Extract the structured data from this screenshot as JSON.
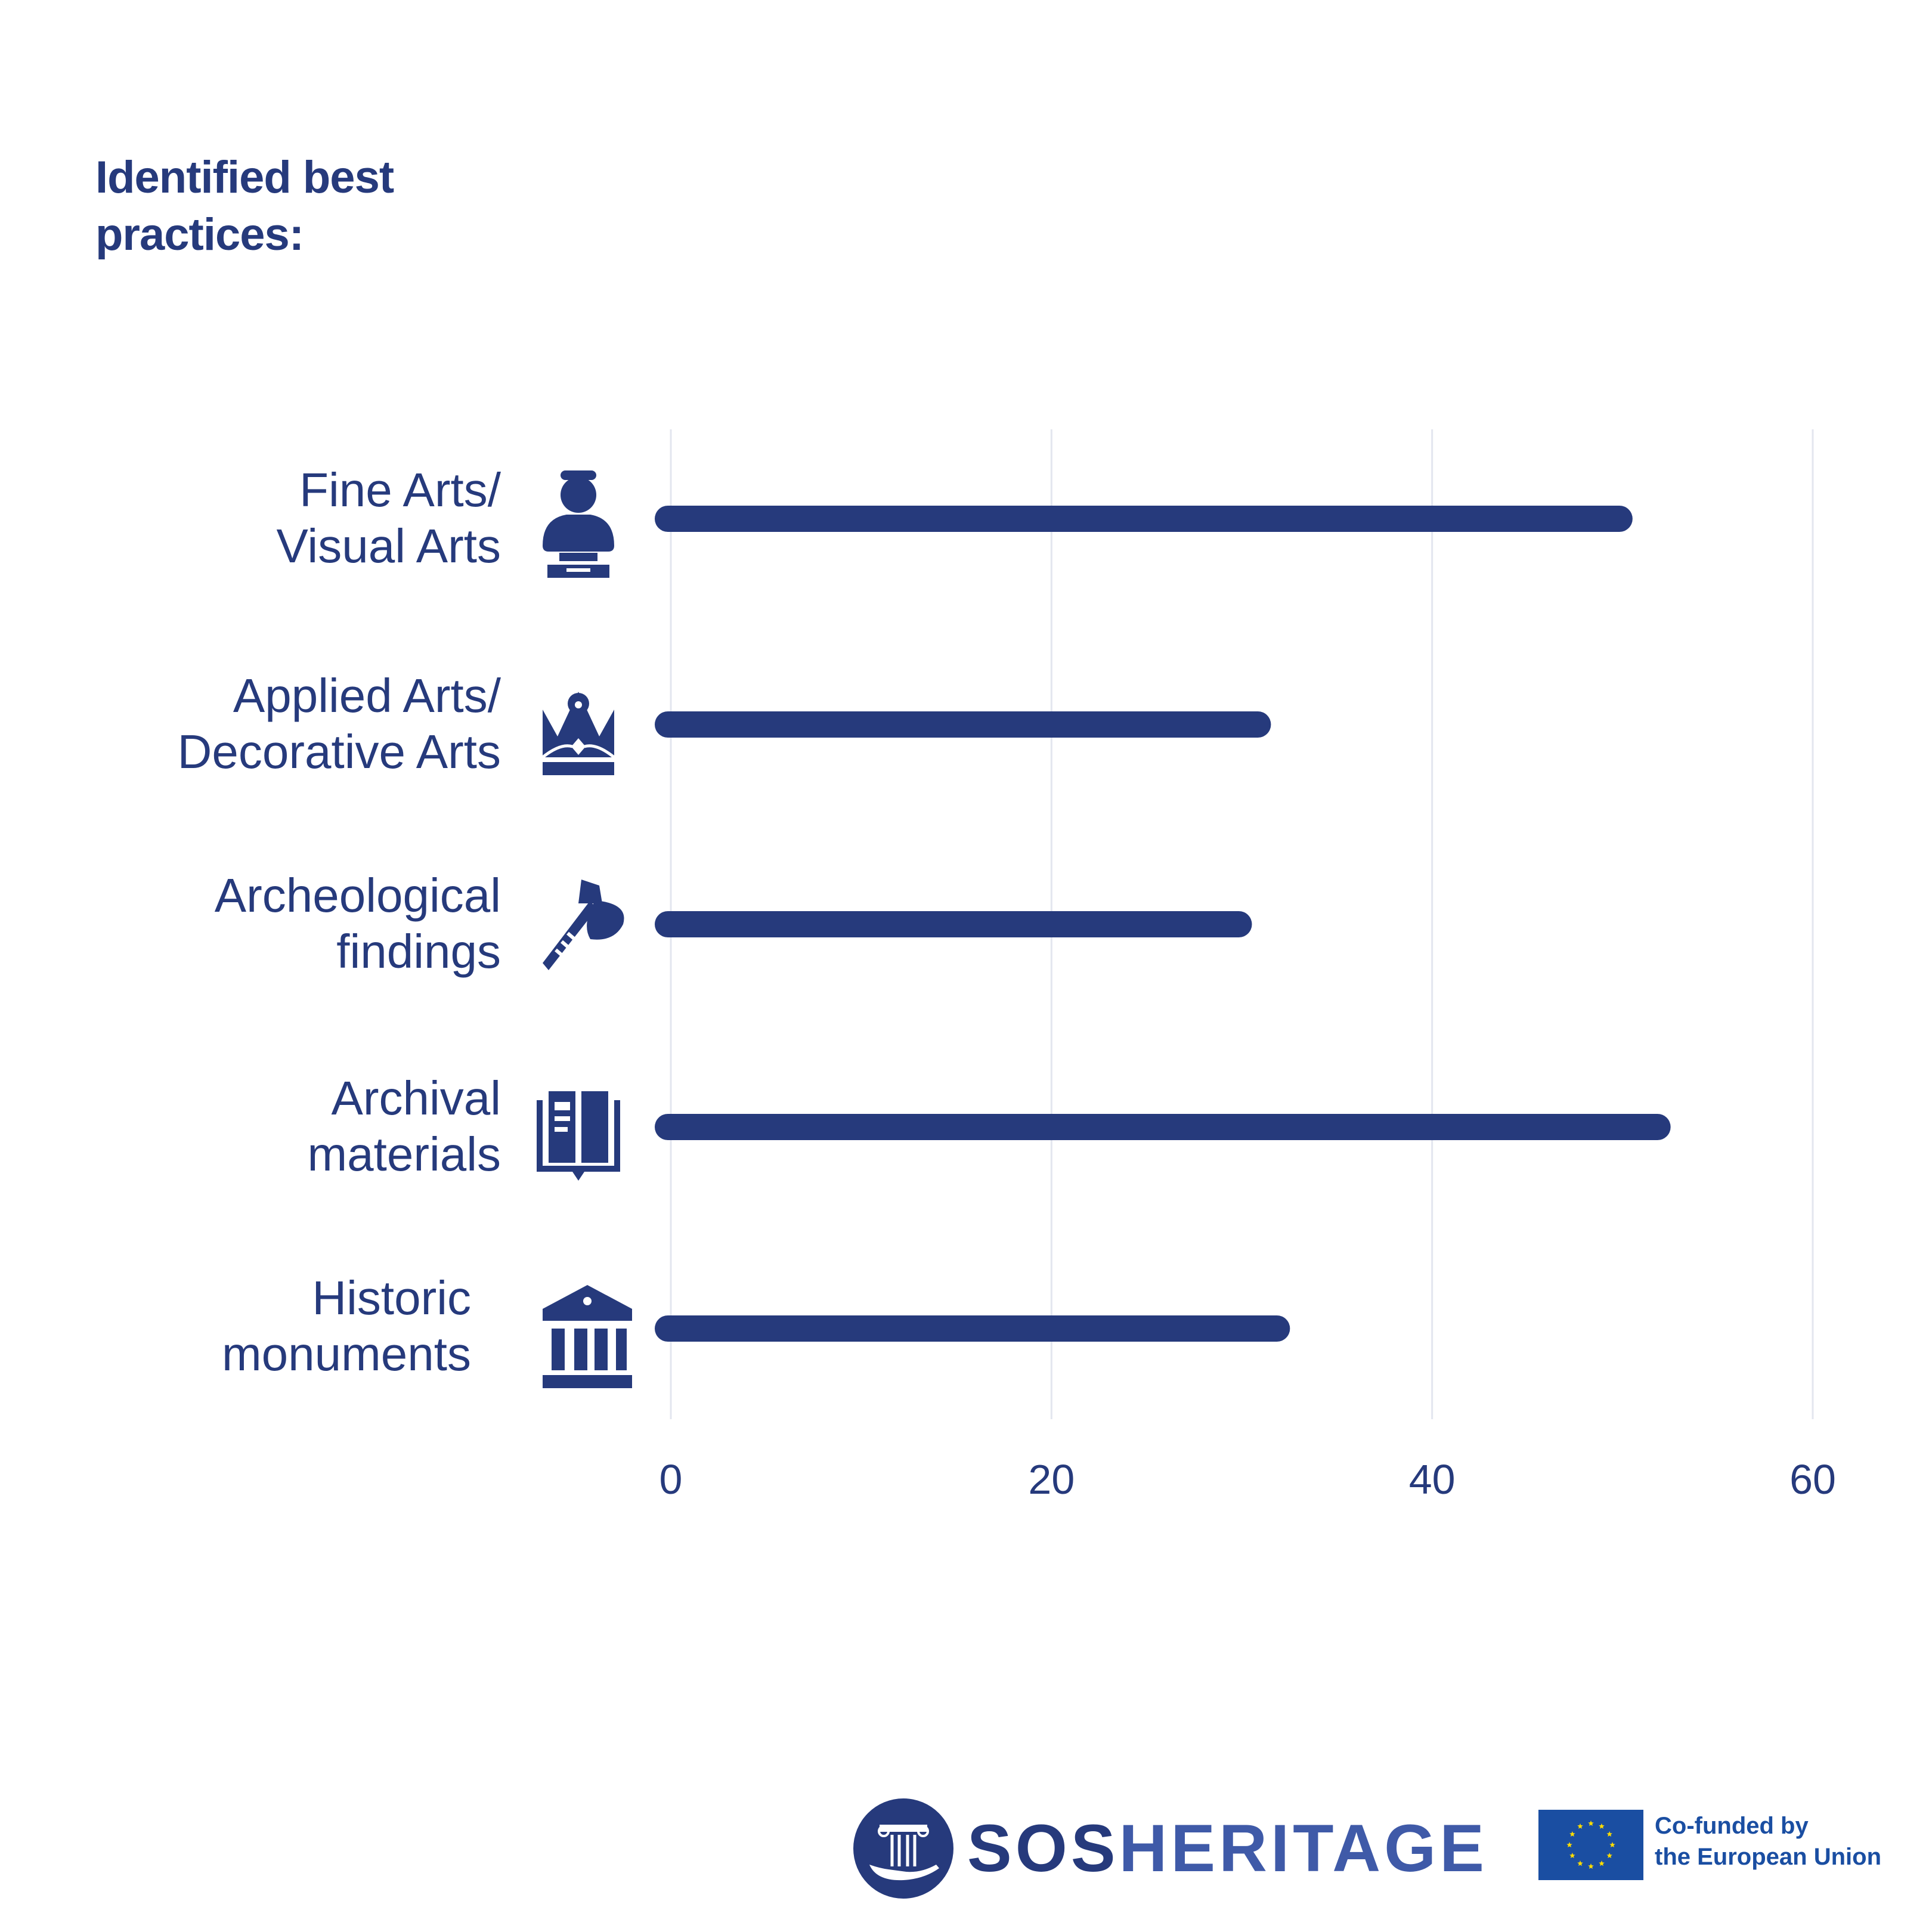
{
  "title": "Identified best practices:",
  "chart_data": {
    "type": "bar",
    "orientation": "horizontal",
    "categories": [
      "Fine Arts/\nVisual Arts",
      "Applied Arts/\nDecorative Arts",
      "Archeological\nfindings",
      "Archival\nmaterials",
      "Historic\nmonuments"
    ],
    "values": [
      50,
      31,
      30,
      52,
      32
    ],
    "xlim": [
      0,
      60
    ],
    "xticks": [
      "0",
      "20",
      "40",
      "60"
    ],
    "grid": true,
    "bar_color": "#263a7c",
    "category_icons": [
      "bust-icon",
      "crown-icon",
      "axe-icon",
      "book-icon",
      "museum-icon"
    ]
  },
  "footer": {
    "brand_bold": "SOS",
    "brand_light": "HERITAGE",
    "eu_text": "Co-funded by\nthe European Union"
  },
  "colors": {
    "primary": "#263a7c",
    "grid": "#e3e6ef",
    "eu_blue": "#1a4ea2",
    "eu_star": "#ffdd00"
  }
}
